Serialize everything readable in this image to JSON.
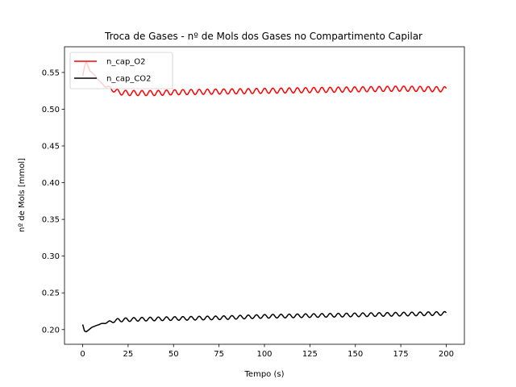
{
  "chart_data": {
    "type": "line",
    "title": "Troca de Gases - nº de Mols dos Gases no Compartimento Capilar",
    "xlabel": "Tempo (s)",
    "ylabel": "nº de Mols [mmol]",
    "xlim": [
      -10,
      210
    ],
    "ylim": [
      0.18,
      0.585
    ],
    "xticks": [
      0,
      25,
      50,
      75,
      100,
      125,
      150,
      175,
      200
    ],
    "yticks": [
      0.2,
      0.25,
      0.3,
      0.35,
      0.4,
      0.45,
      0.5,
      0.55
    ],
    "ytick_labels": [
      "0.20",
      "0.25",
      "0.30",
      "0.35",
      "0.40",
      "0.45",
      "0.50",
      "0.55"
    ],
    "grid": false,
    "legend_position": "upper-left",
    "series": [
      {
        "name": "n_cap_O2",
        "color": "#ff0000",
        "points": [
          [
            0,
            0.545
          ],
          [
            1,
            0.558
          ],
          [
            2,
            0.565
          ],
          [
            3,
            0.558
          ],
          [
            4,
            0.552
          ],
          [
            6,
            0.548
          ],
          [
            8,
            0.542
          ],
          [
            10,
            0.536
          ],
          [
            12,
            0.532
          ],
          [
            14,
            0.53
          ],
          [
            16,
            0.527
          ],
          [
            18,
            0.525
          ],
          [
            20,
            0.523
          ],
          [
            25,
            0.522
          ],
          [
            30,
            0.522
          ],
          [
            40,
            0.522
          ],
          [
            50,
            0.523
          ],
          [
            75,
            0.524
          ],
          [
            100,
            0.525
          ],
          [
            125,
            0.526
          ],
          [
            150,
            0.527
          ],
          [
            175,
            0.528
          ],
          [
            200,
            0.527
          ]
        ],
        "oscillation_period": 4.5,
        "oscillation_amplitude": 0.0035
      },
      {
        "name": "n_cap_CO2",
        "color": "#000000",
        "points": [
          [
            0,
            0.207
          ],
          [
            1,
            0.198
          ],
          [
            2,
            0.197
          ],
          [
            3,
            0.199
          ],
          [
            5,
            0.203
          ],
          [
            8,
            0.206
          ],
          [
            12,
            0.209
          ],
          [
            16,
            0.211
          ],
          [
            20,
            0.213
          ],
          [
            30,
            0.214
          ],
          [
            50,
            0.215
          ],
          [
            75,
            0.216
          ],
          [
            100,
            0.218
          ],
          [
            125,
            0.219
          ],
          [
            150,
            0.22
          ],
          [
            175,
            0.221
          ],
          [
            200,
            0.222
          ]
        ],
        "oscillation_period": 4.5,
        "oscillation_amplitude": 0.0025
      }
    ]
  }
}
